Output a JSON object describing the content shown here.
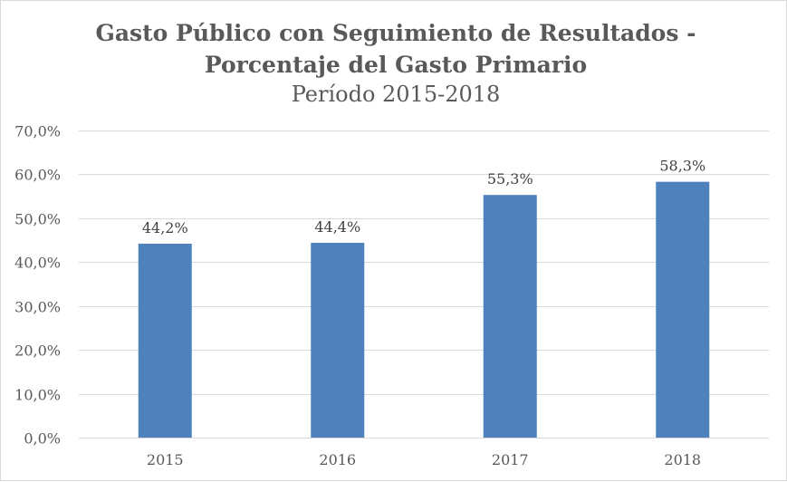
{
  "chart_data": {
    "type": "bar",
    "title_line1": "Gasto Público con Seguimiento de Resultados -",
    "title_line2": "Porcentaje del Gasto Primario",
    "subtitle": "Período 2015-2018",
    "categories": [
      "2015",
      "2016",
      "2017",
      "2018"
    ],
    "values": [
      44.2,
      44.4,
      55.3,
      58.3
    ],
    "value_labels": [
      "44,2%",
      "44,4%",
      "55,3%",
      "58,3%"
    ],
    "ylim": [
      0,
      70
    ],
    "yticks": [
      0,
      10,
      20,
      30,
      40,
      50,
      60,
      70
    ],
    "ytick_labels": [
      "0,0%",
      "10,0%",
      "20,0%",
      "30,0%",
      "40,0%",
      "50,0%",
      "60,0%",
      "70,0%"
    ],
    "grid": true,
    "legend": "none",
    "bar_color": "#4f81bd",
    "grid_color": "#d9d9d9"
  }
}
